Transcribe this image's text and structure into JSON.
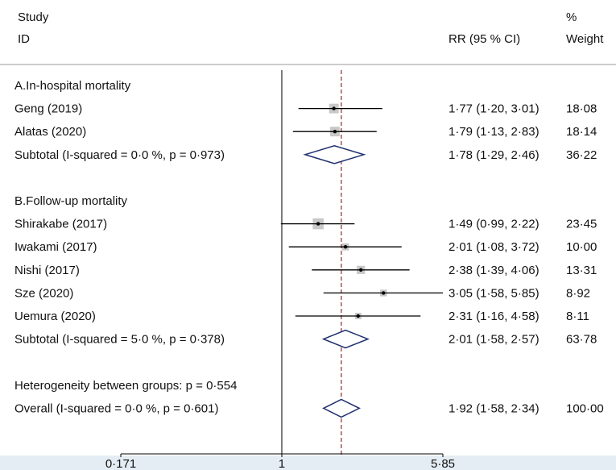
{
  "chart_data": {
    "type": "forest",
    "x_scale": "log",
    "xlim": [
      0.171,
      5.85
    ],
    "x_ticks": [
      "0·171",
      "1",
      "5·85"
    ],
    "null_line": 1,
    "overall_line": 1.92,
    "header": {
      "study_line1": "Study",
      "study_line2": "ID",
      "effect_label": "RR (95 % CI)",
      "weight_line1": "%",
      "weight_line2": "Weight"
    },
    "groups": [
      {
        "label": "A.In-hospital mortality",
        "studies": [
          {
            "name": "Geng  (2019)",
            "rr": 1.77,
            "lo": 1.2,
            "hi": 3.01,
            "ci_text": "1·77 (1·20, 3·01)",
            "weight": 18.08,
            "weight_text": "18·08"
          },
          {
            "name": "Alatas  (2020)",
            "rr": 1.79,
            "lo": 1.13,
            "hi": 2.83,
            "ci_text": "1·79 (1·13, 2·83)",
            "weight": 18.14,
            "weight_text": "18·14"
          }
        ],
        "subtotal": {
          "label": "Subtotal  (I-squared = 0·0 %, p = 0·973)",
          "rr": 1.78,
          "lo": 1.29,
          "hi": 2.46,
          "ci_text": "1·78 (1·29, 2·46)",
          "weight_text": "36·22"
        }
      },
      {
        "label": "B.Follow-up mortality",
        "studies": [
          {
            "name": "Shirakabe  (2017)",
            "rr": 1.49,
            "lo": 0.99,
            "hi": 2.22,
            "ci_text": "1·49 (0·99, 2·22)",
            "weight": 23.45,
            "weight_text": "23·45"
          },
          {
            "name": "Iwakami  (2017)",
            "rr": 2.01,
            "lo": 1.08,
            "hi": 3.72,
            "ci_text": "2·01 (1·08, 3·72)",
            "weight": 10.0,
            "weight_text": "10·00"
          },
          {
            "name": "Nishi  (2017)",
            "rr": 2.38,
            "lo": 1.39,
            "hi": 4.06,
            "ci_text": "2·38 (1·39, 4·06)",
            "weight": 13.31,
            "weight_text": "13·31"
          },
          {
            "name": "Sze  (2020)",
            "rr": 3.05,
            "lo": 1.58,
            "hi": 5.85,
            "ci_text": "3·05 (1·58, 5·85)",
            "weight": 8.92,
            "weight_text": "8·92"
          },
          {
            "name": "Uemura  (2020)",
            "rr": 2.31,
            "lo": 1.16,
            "hi": 4.58,
            "ci_text": "2·31 (1·16, 4·58)",
            "weight": 8.11,
            "weight_text": "8·11"
          }
        ],
        "subtotal": {
          "label": "Subtotal  (I-squared = 5·0 %, p = 0·378)",
          "rr": 2.01,
          "lo": 1.58,
          "hi": 2.57,
          "ci_text": "2·01 (1·58, 2·57)",
          "weight_text": "63·78"
        }
      }
    ],
    "heterogeneity": "Heterogeneity between groups: p = 0·554",
    "overall": {
      "label": "Overall  (I-squared = 0·0 %, p = 0·601)",
      "rr": 1.92,
      "lo": 1.58,
      "hi": 2.34,
      "ci_text": "1·92 (1·58, 2·34)",
      "weight_text": "100·00"
    },
    "colors": {
      "diamond": "#1f2f6e",
      "overall_line": "#b0302c",
      "box": "#c8c8c8",
      "axis_band": "#e4edf3",
      "text": "#111111"
    }
  }
}
